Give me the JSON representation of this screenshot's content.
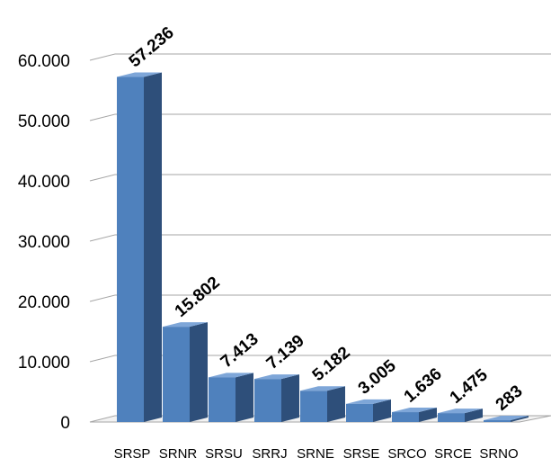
{
  "chart_data": {
    "type": "bar",
    "style": "3d-column",
    "categories": [
      "SRSP",
      "SRNR",
      "SRSU",
      "SRRJ",
      "SRNE",
      "SRSE",
      "SRCO",
      "SRCE",
      "SRNO"
    ],
    "values": [
      57236,
      15802,
      7413,
      7139,
      5182,
      3005,
      1636,
      1475,
      283
    ],
    "data_labels": [
      "57.236",
      "15.802",
      "7.413",
      "7.139",
      "5.182",
      "3.005",
      "1.636",
      "1.475",
      "283"
    ],
    "y_ticks": [
      0,
      10000,
      20000,
      30000,
      40000,
      50000,
      60000
    ],
    "y_tick_labels": [
      "0",
      "10.000",
      "20.000",
      "30.000",
      "40.000",
      "50.000",
      "60.000"
    ],
    "ylim": [
      0,
      60000
    ],
    "title": "",
    "xlabel": "",
    "ylabel": "",
    "grid": true,
    "legend": "none",
    "colors": {
      "bar_front": "#4f81bd",
      "bar_side": "#2e4f7a",
      "bar_top": "#7ea6d8",
      "gridline": "#a6a6a6",
      "floor": "#f2f2f2"
    }
  }
}
